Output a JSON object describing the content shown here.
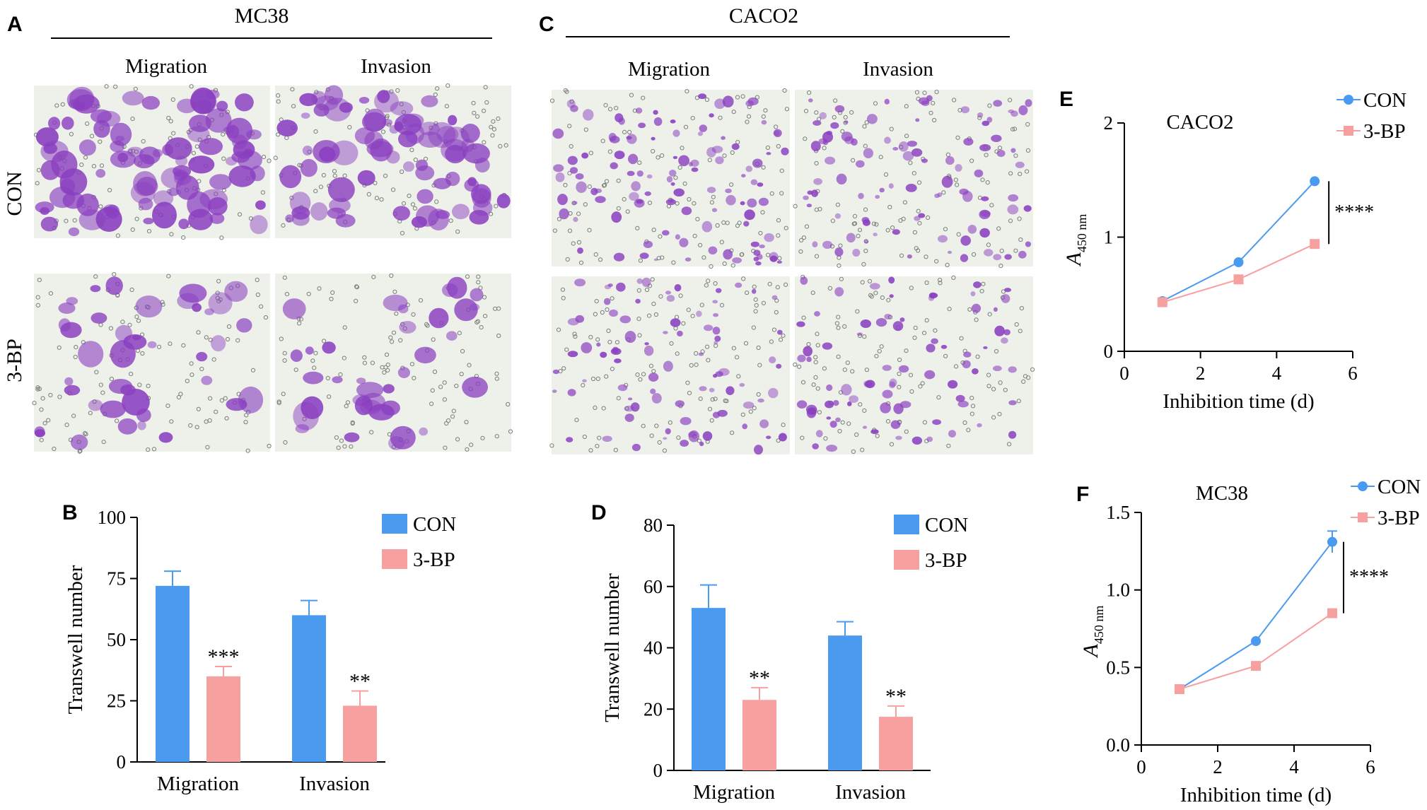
{
  "colors": {
    "con": "#4a9af0",
    "bp": "#f7a0a0",
    "stain": "#8a3fc0",
    "bg_micro": "#eef1ea"
  },
  "panels": {
    "A": {
      "letter": "A",
      "cell_line": "MC38",
      "col_labels": [
        "Migration",
        "Invasion"
      ],
      "row_labels": [
        "CON",
        "3-BP"
      ]
    },
    "C": {
      "letter": "C",
      "cell_line": "CACO2",
      "col_labels": [
        "Migration",
        "Invasion"
      ]
    },
    "B": {
      "letter": "B"
    },
    "D": {
      "letter": "D"
    },
    "E": {
      "letter": "E"
    },
    "F": {
      "letter": "F"
    }
  },
  "chart_data": [
    {
      "id": "B",
      "type": "bar",
      "categories": [
        "Migration",
        "Invasion"
      ],
      "series": [
        {
          "name": "CON",
          "values": [
            72,
            60
          ],
          "errors": [
            6,
            6
          ]
        },
        {
          "name": "3-BP",
          "values": [
            35,
            23
          ],
          "errors": [
            4,
            6
          ]
        }
      ],
      "significance": [
        "***",
        "**"
      ],
      "ylabel": "Transwell number",
      "ylim": [
        0,
        100
      ],
      "yticks": [
        "0",
        "25",
        "50",
        "75",
        "100"
      ],
      "legend_position": "top-right"
    },
    {
      "id": "D",
      "type": "bar",
      "categories": [
        "Migration",
        "Invasion"
      ],
      "series": [
        {
          "name": "CON",
          "values": [
            53,
            44
          ],
          "errors": [
            7.5,
            4.5
          ]
        },
        {
          "name": "3-BP",
          "values": [
            23,
            17.5
          ],
          "errors": [
            4,
            3.5
          ]
        }
      ],
      "significance": [
        "**",
        "**"
      ],
      "ylabel": "Transwell number",
      "ylim": [
        0,
        80
      ],
      "yticks": [
        "0",
        "20",
        "40",
        "60",
        "80"
      ],
      "legend_position": "top-right"
    },
    {
      "id": "E",
      "type": "line",
      "title": "CACO2",
      "series": [
        {
          "name": "CON",
          "x": [
            1,
            3,
            5
          ],
          "values": [
            0.44,
            0.78,
            1.49
          ],
          "errors": [
            0,
            0,
            0
          ]
        },
        {
          "name": "3-BP",
          "x": [
            1,
            3,
            5
          ],
          "values": [
            0.43,
            0.63,
            0.94
          ],
          "errors": [
            0,
            0,
            0
          ]
        }
      ],
      "significance": "****",
      "xlabel": "Inhibition time (d)",
      "ylabel_main": "A",
      "ylabel_sub": "450 nm",
      "xlim": [
        0,
        6
      ],
      "ylim": [
        0,
        2
      ],
      "xticks": [
        "0",
        "2",
        "4",
        "6"
      ],
      "yticks": [
        "0",
        "1",
        "2"
      ],
      "legend_position": "top-right"
    },
    {
      "id": "F",
      "type": "line",
      "title": "MC38",
      "series": [
        {
          "name": "CON",
          "x": [
            1,
            3,
            5
          ],
          "values": [
            0.36,
            0.67,
            1.31
          ],
          "errors": [
            0,
            0,
            0.07
          ]
        },
        {
          "name": "3-BP",
          "x": [
            1,
            3,
            5
          ],
          "values": [
            0.36,
            0.51,
            0.85
          ],
          "errors": [
            0,
            0,
            0
          ]
        }
      ],
      "significance": "****",
      "xlabel": "Inhibition time (d)",
      "ylabel_main": "A",
      "ylabel_sub": "450 nm",
      "xlim": [
        0,
        6
      ],
      "ylim": [
        0,
        1.5
      ],
      "xticks": [
        "0",
        "2",
        "4",
        "6"
      ],
      "yticks": [
        "0.0",
        "0.5",
        "1.0",
        "1.5"
      ],
      "legend_position": "top-right"
    }
  ]
}
